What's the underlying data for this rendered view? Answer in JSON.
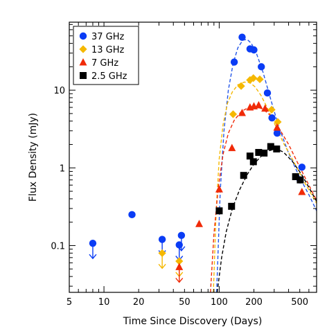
{
  "chart_data": {
    "type": "scatter",
    "xlabel": "Time Since Discovery (Days)",
    "ylabel": "Flux Density (mJy)",
    "xscale": "log",
    "yscale": "log",
    "xlim": [
      5,
      700
    ],
    "ylim": [
      0.025,
      75
    ],
    "x_ticks": [
      5,
      10,
      20,
      50,
      100,
      200,
      500
    ],
    "x_tick_labels": [
      "5",
      "10",
      "20",
      "50",
      "100",
      "200",
      "500"
    ],
    "y_ticks": [
      0.1,
      1,
      10
    ],
    "y_tick_labels": [
      "0.1",
      "1",
      "10"
    ],
    "grid": false,
    "legend_position": "top-left",
    "series": [
      {
        "name": "37 GHz",
        "marker": "circle",
        "color": "#0a3cf5",
        "points": [
          [
            17.5,
            0.25
          ],
          [
            135,
            23
          ],
          [
            158,
            48
          ],
          [
            185,
            34
          ],
          [
            200,
            33
          ],
          [
            232,
            20
          ],
          [
            262,
            9.2
          ],
          [
            287,
            4.4
          ],
          [
            318,
            2.8
          ],
          [
            522,
            1.02
          ],
          [
            503,
            0.7
          ]
        ],
        "upper_limits": [
          [
            8,
            0.107
          ],
          [
            32,
            0.12
          ],
          [
            45,
            0.102
          ],
          [
            47,
            0.135
          ]
        ],
        "model_curve": {
          "color": "#2255e8",
          "x": [
            95,
            102,
            110,
            120,
            132,
            145,
            160,
            175,
            190,
            210,
            240,
            280,
            330,
            400,
            500,
            600,
            700
          ],
          "y": [
            0.025,
            0.5,
            3,
            10,
            22,
            35,
            44,
            45,
            40,
            30,
            17,
            7.6,
            3.3,
            1.55,
            0.75,
            0.45,
            0.28
          ]
        }
      },
      {
        "name": "13 GHz",
        "marker": "diamond",
        "color": "#f5b800",
        "points": [
          [
            132,
            4.9
          ],
          [
            155,
            11.3
          ],
          [
            185,
            13.5
          ],
          [
            198,
            14.3
          ],
          [
            225,
            13.8
          ],
          [
            285,
            5.6
          ],
          [
            322,
            3.9
          ]
        ],
        "upper_limits": [
          [
            32,
            0.08
          ],
          [
            45,
            0.063
          ]
        ],
        "model_curve": {
          "color": "#f5b800",
          "x": [
            89,
            94,
            100,
            108,
            118,
            130,
            145,
            165,
            185,
            205,
            230,
            260,
            300,
            360,
            450,
            560,
            700
          ],
          "y": [
            0.025,
            0.28,
            1.3,
            3.6,
            6.8,
            9.5,
            11.7,
            12.7,
            12.5,
            11,
            8.6,
            6,
            3.8,
            2.1,
            1.15,
            0.62,
            0.35
          ]
        }
      },
      {
        "name": "7 GHz",
        "marker": "triangle",
        "color": "#f02a08",
        "points": [
          [
            67,
            0.19
          ],
          [
            100,
            0.53
          ],
          [
            129,
            1.8
          ],
          [
            158,
            5.1
          ],
          [
            185,
            6
          ],
          [
            200,
            6.2
          ],
          [
            220,
            6.4
          ],
          [
            250,
            5.8
          ],
          [
            318,
            3.3
          ],
          [
            522,
            0.49
          ]
        ],
        "upper_limits": [
          [
            45,
            0.053
          ]
        ],
        "model_curve": {
          "color": "#f02a08",
          "x": [
            84,
            90,
            98,
            108,
            120,
            135,
            155,
            180,
            210,
            240,
            275,
            320,
            400,
            500,
            600,
            700
          ],
          "y": [
            0.025,
            0.14,
            0.55,
            1.5,
            2.8,
            4.1,
            5.3,
            6,
            6.1,
            5.7,
            4.8,
            3.5,
            2,
            1.02,
            0.6,
            0.38
          ]
        }
      },
      {
        "name": "2.5 GHz",
        "marker": "square",
        "color": "#000000",
        "points": [
          [
            100,
            0.28
          ],
          [
            128,
            0.32
          ],
          [
            163,
            0.8
          ],
          [
            185,
            1.42
          ],
          [
            198,
            1.2
          ],
          [
            220,
            1.58
          ],
          [
            245,
            1.55
          ],
          [
            280,
            1.88
          ],
          [
            315,
            1.75
          ],
          [
            460,
            0.77
          ],
          [
            505,
            0.7
          ]
        ],
        "upper_limits": [],
        "model_curve": {
          "color": "#000000",
          "x": [
            96,
            105,
            115,
            130,
            150,
            175,
            200,
            230,
            270,
            310,
            360,
            430,
            520,
            600,
            700
          ],
          "y": [
            0.025,
            0.07,
            0.15,
            0.3,
            0.52,
            0.82,
            1.12,
            1.4,
            1.66,
            1.76,
            1.6,
            1.22,
            0.82,
            0.56,
            0.37
          ]
        }
      }
    ]
  }
}
